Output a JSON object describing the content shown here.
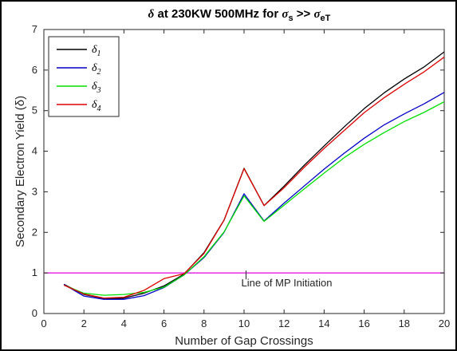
{
  "chart_data": {
    "type": "line",
    "title": {
      "sym": "δ",
      "text": " at 230KW 500MHz for ",
      "sigma_s": "σ",
      "sub_s": "s",
      "mid": " >> ",
      "sigma_eT": "σ",
      "sub_eT": "eT"
    },
    "xlabel": "Number of Gap Crossings",
    "ylabel": "Secondary Electron Yield (δ)",
    "xlim": [
      0,
      20
    ],
    "ylim": [
      0,
      7
    ],
    "xticks": [
      0,
      2,
      4,
      6,
      8,
      10,
      12,
      14,
      16,
      18,
      20
    ],
    "yticks": [
      0,
      1,
      2,
      3,
      4,
      5,
      6,
      7
    ],
    "grid": false,
    "legend_position": "top-left",
    "x": [
      1,
      2,
      3,
      4,
      5,
      6,
      7,
      8,
      9,
      10,
      11,
      12,
      13,
      14,
      15,
      16,
      17,
      18,
      19,
      20
    ],
    "series": [
      {
        "name_sym": "δ",
        "name_sub": "1",
        "color": "#000000",
        "values": [
          0.72,
          0.47,
          0.37,
          0.38,
          0.5,
          0.68,
          0.97,
          1.5,
          2.3,
          3.58,
          2.66,
          3.14,
          3.65,
          4.13,
          4.6,
          5.05,
          5.44,
          5.78,
          6.08,
          6.45
        ]
      },
      {
        "name_sym": "δ",
        "name_sub": "2",
        "color": "#0000c8",
        "values": [
          0.72,
          0.43,
          0.35,
          0.35,
          0.44,
          0.64,
          0.95,
          1.38,
          2.0,
          2.95,
          2.28,
          2.72,
          3.14,
          3.56,
          3.95,
          4.32,
          4.65,
          4.92,
          5.17,
          5.45
        ]
      },
      {
        "name_sym": "δ",
        "name_sub": "3",
        "color": "#00e000",
        "values": [
          0.7,
          0.5,
          0.45,
          0.47,
          0.52,
          0.65,
          0.95,
          1.4,
          2.01,
          2.9,
          2.27,
          2.67,
          3.07,
          3.46,
          3.84,
          4.17,
          4.46,
          4.73,
          4.96,
          5.22
        ]
      },
      {
        "name_sym": "δ",
        "name_sub": "4",
        "color": "#dd0000",
        "values": [
          0.7,
          0.48,
          0.38,
          0.4,
          0.57,
          0.86,
          0.98,
          1.48,
          2.3,
          3.57,
          2.66,
          3.1,
          3.6,
          4.07,
          4.51,
          4.95,
          5.32,
          5.65,
          5.96,
          6.32
        ]
      }
    ],
    "reference_line": {
      "y": 1,
      "color": "#e000e0",
      "label": "Line of MP Initiation",
      "label_at_x": 10.1
    }
  }
}
